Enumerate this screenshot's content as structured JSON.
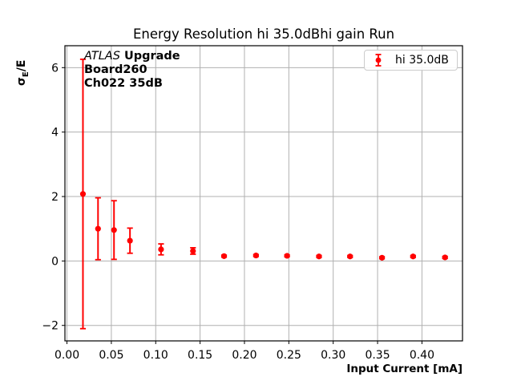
{
  "figure": {
    "ylabel": {
      "sigma": "σ",
      "sub": "E",
      "rest": "/E"
    },
    "annotation": {
      "atlas": "ATLAS",
      "upgrade": "Upgrade",
      "board": "Board260",
      "channel": "Ch022 35dB"
    }
  },
  "chart_data": {
    "type": "scatter",
    "title": "Energy Resolution hi 35.0dBhi gain Run",
    "xlabel": "Input Current [mA]",
    "ylabel": "σE/E",
    "xlim": [
      -0.0023,
      0.4457
    ],
    "ylim": [
      -2.48,
      6.68
    ],
    "grid": true,
    "grid_color": "#b0b0b0",
    "spine_color": "#000000",
    "tick_color": "#000000",
    "xticks": [
      {
        "v": 0.0,
        "label": "0.00"
      },
      {
        "v": 0.05,
        "label": "0.05"
      },
      {
        "v": 0.1,
        "label": "0.10"
      },
      {
        "v": 0.15,
        "label": "0.15"
      },
      {
        "v": 0.2,
        "label": "0.20"
      },
      {
        "v": 0.25,
        "label": "0.25"
      },
      {
        "v": 0.3,
        "label": "0.30"
      },
      {
        "v": 0.35,
        "label": "0.35"
      },
      {
        "v": 0.4,
        "label": "0.40"
      }
    ],
    "yticks": [
      {
        "v": -2,
        "label": "−2"
      },
      {
        "v": 0,
        "label": "0"
      },
      {
        "v": 2,
        "label": "2"
      },
      {
        "v": 4,
        "label": "4"
      },
      {
        "v": 6,
        "label": "6"
      }
    ],
    "legend": {
      "position": "upper right",
      "entries": [
        "hi 35.0dB"
      ]
    },
    "series": [
      {
        "name": "hi 35.0dB",
        "color": "#ff0000",
        "marker": "circle",
        "x": [
          0.018,
          0.035,
          0.053,
          0.071,
          0.106,
          0.142,
          0.177,
          0.213,
          0.248,
          0.284,
          0.319,
          0.355,
          0.39,
          0.426
        ],
        "y": [
          2.08,
          1.0,
          0.96,
          0.63,
          0.36,
          0.31,
          0.15,
          0.17,
          0.16,
          0.14,
          0.14,
          0.1,
          0.14,
          0.11
        ],
        "yerr": [
          4.18,
          0.96,
          0.91,
          0.39,
          0.17,
          0.1,
          0.03,
          0.03,
          0.03,
          0.03,
          0.03,
          0.03,
          0.03,
          0.03
        ]
      }
    ]
  }
}
